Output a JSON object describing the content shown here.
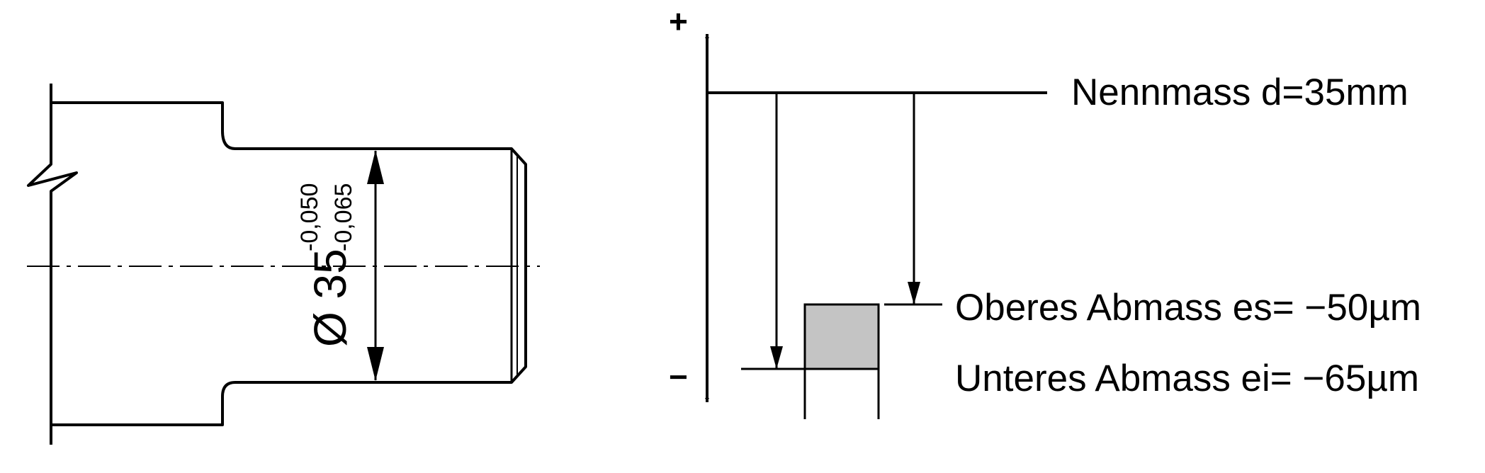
{
  "shaft_drawing": {
    "diameter_label": "Ø 35",
    "upper_deviation": "-0,050",
    "lower_deviation": "-0,065"
  },
  "tolerance_diagram": {
    "plus_sign": "+",
    "minus_sign": "−",
    "nominal_label": "Nennmass d=35mm",
    "upper_label": "Oberes Abmass es= −50µm",
    "lower_label": "Unteres Abmass ei= −65µm",
    "zone_color": "#c4c4c4"
  }
}
